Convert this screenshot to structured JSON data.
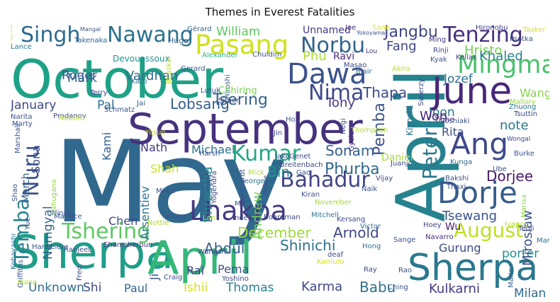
{
  "figure": {
    "title": "Themes in Everest Fatalities"
  },
  "words": [
    {
      "text": "May",
      "color": "#31688e"
    },
    {
      "text": "April",
      "color": "#26828e"
    },
    {
      "text": "September",
      "color": "#46327e"
    },
    {
      "text": "October",
      "color": "#1fa187"
    },
    {
      "text": "Sherpa",
      "color": "#1f9e89"
    },
    {
      "text": "April",
      "color": "#35b779"
    },
    {
      "text": "Sherpa",
      "color": "#2a788e"
    },
    {
      "text": "June",
      "color": "#482878"
    },
    {
      "text": "Dorje",
      "color": "#365c8d"
    },
    {
      "text": "Lhakpa",
      "color": "#443a83"
    },
    {
      "text": "Ang",
      "color": "#3e4989"
    },
    {
      "text": "Pasang",
      "color": "#d0e11c"
    },
    {
      "text": "Dawa",
      "color": "#3b528b"
    },
    {
      "text": "Mingma",
      "color": "#4ac16d"
    },
    {
      "text": "Tenzing",
      "color": "#472d7b"
    },
    {
      "text": "Nawang",
      "color": "#2c728e"
    },
    {
      "text": "Singh",
      "color": "#2f6b8e"
    },
    {
      "text": "Norbu",
      "color": "#33638d"
    },
    {
      "text": "Nima",
      "color": "#3e4a89"
    },
    {
      "text": "Kumar",
      "color": "#22a785"
    },
    {
      "text": "Bahadur",
      "color": "#414487"
    },
    {
      "text": "Tshering",
      "color": "#5ec962"
    },
    {
      "text": "Nuru",
      "color": "#3b528b"
    },
    {
      "text": "Temba",
      "color": "#277f8e"
    },
    {
      "text": "Jangbu",
      "color": "#3f4788"
    },
    {
      "text": "Peter",
      "color": "#2a768e"
    },
    {
      "text": "August",
      "color": "#bddf26"
    },
    {
      "text": "Phurba",
      "color": "#31688e"
    },
    {
      "text": "Pemba",
      "color": "#3a548c"
    },
    {
      "text": "Tsering",
      "color": "#33638d"
    },
    {
      "text": "Lobsang",
      "color": "#365d8d"
    },
    {
      "text": "Arnold",
      "color": "#404688"
    },
    {
      "text": "Shinichi",
      "color": "#2d708e"
    },
    {
      "text": "Abdul",
      "color": "#365c8d"
    },
    {
      "text": "December",
      "color": "#9dd93b"
    },
    {
      "text": "Bin",
      "color": "#20928c"
    },
    {
      "text": "Sonam",
      "color": "#34618d"
    },
    {
      "text": "Thapa",
      "color": "#3e4a89"
    },
    {
      "text": "Tony",
      "color": "#453781"
    },
    {
      "text": "Fang",
      "color": "#404588"
    },
    {
      "text": "Phu",
      "color": "#addc30"
    },
    {
      "text": "Hristo",
      "color": "#75d054"
    },
    {
      "text": "Khaled",
      "color": "#26828e"
    },
    {
      "text": "Jozef",
      "color": "#2e6e8e"
    },
    {
      "text": "note",
      "color": "#2a788e"
    },
    {
      "text": "Wang",
      "color": "#84d44b"
    },
    {
      "text": "Joon",
      "color": "#2a788e"
    },
    {
      "text": "Rita",
      "color": "#3d4d8a"
    },
    {
      "text": "Won",
      "color": "#482475"
    },
    {
      "text": "Dorjee",
      "color": "#48186a"
    },
    {
      "text": "Tsewang",
      "color": "#3a538b"
    },
    {
      "text": "Gurung",
      "color": "#3f4889"
    },
    {
      "text": "Babu",
      "color": "#2c718e"
    },
    {
      "text": "Karma",
      "color": "#3f4889"
    },
    {
      "text": "Kulkarni",
      "color": "#453882"
    },
    {
      "text": "Milan",
      "color": "#30698e"
    },
    {
      "text": "porter",
      "color": "#21908d"
    },
    {
      "text": "Wu",
      "color": "#481f70"
    },
    {
      "text": "Miroslaw",
      "color": "#3b518b"
    },
    {
      "text": "Vardhan",
      "color": "#2f6c8e"
    },
    {
      "text": "Roger",
      "color": "#3b528b"
    },
    {
      "text": "William",
      "color": "#5ec962"
    },
    {
      "text": "Mark",
      "color": "#31688e"
    },
    {
      "text": "Pal",
      "color": "#2e6e8e"
    },
    {
      "text": "January",
      "color": "#3f4889"
    },
    {
      "text": "Kami",
      "color": "#34608d"
    },
    {
      "text": "Nath",
      "color": "#453882"
    },
    {
      "text": "Michael",
      "color": "#2c738e"
    },
    {
      "text": "Shah",
      "color": "#c8e020"
    },
    {
      "text": "Shrestha",
      "color": "#23898e"
    },
    {
      "text": "Arsentiev",
      "color": "#2c728e"
    },
    {
      "text": "Chen",
      "color": "#3e4c8a"
    },
    {
      "text": "Namgyal",
      "color": "#33628d"
    },
    {
      "text": "Sona",
      "color": "#3d4e8a"
    },
    {
      "text": "March",
      "color": "#34618d"
    },
    {
      "text": "Andrew",
      "color": "#70cf57"
    },
    {
      "text": "Pema",
      "color": "#3b528b"
    },
    {
      "text": "Rai",
      "color": "#423f85"
    },
    {
      "text": "Ji",
      "color": "#3c4f8a"
    },
    {
      "text": "Unknown",
      "color": "#2e6e8e"
    },
    {
      "text": "Shi",
      "color": "#3e4a89"
    },
    {
      "text": "Paul",
      "color": "#31678e"
    },
    {
      "text": "Ishii",
      "color": "#d2e21b"
    },
    {
      "text": "Thomas",
      "color": "#27808e"
    },
    {
      "text": "Hugo",
      "color": "#34618d"
    },
    {
      "text": "Ravi",
      "color": "#472c7a"
    },
    {
      "text": "Unnamed",
      "color": "#443b84"
    },
    {
      "text": "Chuldim",
      "color": "#3b528b"
    },
    {
      "text": "Devouassoux",
      "color": "#1f958b"
    },
    {
      "text": "Alexander",
      "color": "#2db27d"
    },
    {
      "text": "Takenaka",
      "color": "#32648e"
    },
    {
      "text": "Lance",
      "color": "#2a788e"
    },
    {
      "text": "Hiroshi",
      "color": "#35608d"
    },
    {
      "text": "Chhiring",
      "color": "#7ad151"
    },
    {
      "text": "Gérard",
      "color": "#33628d"
    },
    {
      "text": "Mangal",
      "color": "#3b528b"
    },
    {
      "text": "Joe",
      "color": "#46307e"
    },
    {
      "text": "Sanu",
      "color": "#e5e419"
    },
    {
      "text": "Hironobu",
      "color": "#414487"
    },
    {
      "text": "Tasker",
      "color": "#d5e21a"
    },
    {
      "text": "Yokoyama",
      "color": "#3b528b"
    },
    {
      "text": "Ming",
      "color": "#46337f"
    },
    {
      "text": "Rinji",
      "color": "#3f4788"
    },
    {
      "text": "Psotka",
      "color": "#3b528b"
    },
    {
      "text": "Kellas",
      "color": "#404688"
    },
    {
      "text": "Lou",
      "color": "#46327e"
    },
    {
      "text": "Masao",
      "color": "#3e4989"
    },
    {
      "text": "Blair",
      "color": "#33638d"
    },
    {
      "text": "Kyak",
      "color": "#3a548c"
    },
    {
      "text": "Akira",
      "color": "#bade28"
    },
    {
      "text": "Zhuong",
      "color": "#2c728e"
    },
    {
      "text": "Mallory",
      "color": "#95d840"
    },
    {
      "text": "Tsuttin",
      "color": "#3e4a89"
    },
    {
      "text": "Tighe",
      "color": "#482677"
    },
    {
      "text": "Swierzy",
      "color": "#3e4989"
    },
    {
      "text": "Kiyoshi",
      "color": "#2c728e"
    },
    {
      "text": "Thompson",
      "color": "#b0dd2f"
    },
    {
      "text": "Gyalu",
      "color": "#46327e"
    },
    {
      "text": "Juanjo",
      "color": "#3d4d8a"
    },
    {
      "text": "Toshiaki",
      "color": "#3b518b"
    },
    {
      "text": "Wongal",
      "color": "#3e4c8a"
    },
    {
      "text": "Burke",
      "color": "#3b528b"
    },
    {
      "text": "Kunga",
      "color": "#30698e"
    },
    {
      "text": "Ube",
      "color": "#3b528b"
    },
    {
      "text": "Bakshi",
      "color": "#3a548c"
    },
    {
      "text": "Thaxi",
      "color": "#3f4788"
    },
    {
      "text": "Vijay",
      "color": "#3e4989"
    },
    {
      "text": "Marisa",
      "color": "#8fd744"
    },
    {
      "text": "Naik",
      "color": "#3b528b"
    },
    {
      "text": "Kersang",
      "color": "#3e4989"
    },
    {
      "text": "Victor",
      "color": "#2c718e"
    },
    {
      "text": "Kiran",
      "color": "#3d4e8a"
    },
    {
      "text": "November",
      "color": "#a0da39"
    },
    {
      "text": "Hoey",
      "color": "#404688"
    },
    {
      "text": "Navarro",
      "color": "#472f7d"
    },
    {
      "text": "Ivanov",
      "color": "#b5de2b"
    },
    {
      "text": "Tenji",
      "color": "#3e4989"
    },
    {
      "text": "Man",
      "color": "#2c728e"
    },
    {
      "text": "Sange",
      "color": "#3b528b"
    },
    {
      "text": "Hong",
      "color": "#2c728e"
    },
    {
      "text": "deaf",
      "color": "#3e4989"
    },
    {
      "text": "Kamuro",
      "color": "#d5e21a"
    },
    {
      "text": "Ray",
      "color": "#3e4989"
    },
    {
      "text": "Rao",
      "color": "#3a548c"
    },
    {
      "text": "Ching",
      "color": "#3b528b"
    },
    {
      "text": "Mario",
      "color": "#35608d"
    },
    {
      "text": "Ninja",
      "color": "#3b528b"
    },
    {
      "text": "Maurice",
      "color": "#3b528b"
    },
    {
      "text": "Nottle",
      "color": "#addc30"
    },
    {
      "text": "Young",
      "color": "#3a548c"
    },
    {
      "text": "Lan",
      "color": "#b5de2b"
    },
    {
      "text": "Inder",
      "color": "#3b528b"
    },
    {
      "text": "Boardman",
      "color": "#3e4989"
    },
    {
      "text": "Mitchell",
      "color": "#2c728e"
    },
    {
      "text": "Hannelore",
      "color": "#3b528b"
    },
    {
      "text": "Shamsherpun",
      "color": "#46327e"
    },
    {
      "text": "Ranjeet",
      "color": "#3b528b"
    },
    {
      "text": "Griffiths",
      "color": "#3a548c"
    },
    {
      "text": "Fred",
      "color": "#3e4989"
    },
    {
      "text": "Wangchu",
      "color": "#3b528b"
    },
    {
      "text": "Craig",
      "color": "#3d4e8a"
    },
    {
      "text": "Yoshino",
      "color": "#3e4989"
    },
    {
      "text": "Kobayashi",
      "color": "#2c728e"
    },
    {
      "text": "Piana",
      "color": "#b5de2b"
    },
    {
      "text": "Shao",
      "color": "#3b528b"
    },
    {
      "text": "Yue",
      "color": "#3a548c"
    },
    {
      "text": "Bahugana",
      "color": "#95d840"
    },
    {
      "text": "Yogendra",
      "color": "#3e4989"
    },
    {
      "text": "George",
      "color": "#2c728e"
    },
    {
      "text": "Burkhardt",
      "color": "#3b528b"
    },
    {
      "text": "Irvine",
      "color": "#3a548c"
    },
    {
      "text": "mute",
      "color": "#3b528b"
    },
    {
      "text": "Mick",
      "color": "#addc30"
    },
    {
      "text": "Mima",
      "color": "#3b528b"
    },
    {
      "text": "Harsh",
      "color": "#3b528b"
    },
    {
      "text": "Genet",
      "color": "#3e4989"
    },
    {
      "text": "Jake",
      "color": "#3b528b"
    },
    {
      "text": "Breitenbach",
      "color": "#3e4989"
    },
    {
      "text": "Gao",
      "color": "#3a548c"
    },
    {
      "text": "Daniel",
      "color": "#a5db36"
    },
    {
      "text": "Schmatz",
      "color": "#3b528b"
    },
    {
      "text": "Terry",
      "color": "#3e4989"
    },
    {
      "text": "Yasuo",
      "color": "#c2df23"
    },
    {
      "text": "Jai",
      "color": "#35608d"
    },
    {
      "text": "Simon",
      "color": "#3e4989"
    },
    {
      "text": "Lutuk",
      "color": "#3b528b"
    },
    {
      "text": "Kato",
      "color": "#2c728e"
    },
    {
      "text": "Bhaskar",
      "color": "#bddf26"
    },
    {
      "text": "Gerard",
      "color": "#3b528b"
    },
    {
      "text": "Prodanov",
      "color": "#3e4989"
    },
    {
      "text": "Narita",
      "color": "#3b528b"
    },
    {
      "text": "Marty",
      "color": "#3a548c"
    },
    {
      "text": "Marshall",
      "color": "#3b528b"
    },
    {
      "text": "Noboru",
      "color": "#b5de2b"
    },
    {
      "text": "Trujillo",
      "color": "#d5e21a"
    },
    {
      "text": "Ho",
      "color": "#3b528b"
    },
    {
      "text": "Jin",
      "color": "#3e4989"
    },
    {
      "text": "Ma",
      "color": "#3b528b"
    },
    {
      "text": "Negi",
      "color": "#3e4989"
    }
  ]
}
